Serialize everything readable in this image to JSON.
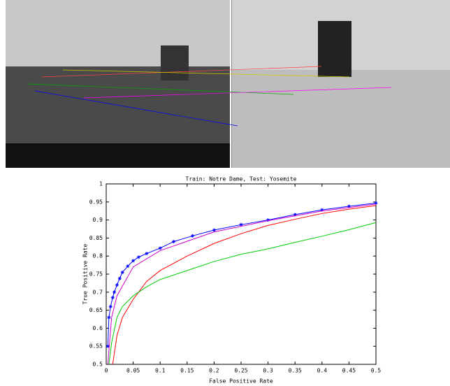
{
  "chart_data": {
    "type": "line",
    "title": "Train: Notre Dame, Test: Yosemite",
    "x_label": "False Positive Rate",
    "y_label": "True Positive Rate",
    "xlim": [
      0,
      0.5
    ],
    "ylim": [
      0.5,
      1
    ],
    "xticks": [
      0,
      0.05,
      0.1,
      0.15,
      0.2,
      0.25,
      0.3,
      0.35,
      0.4,
      0.45,
      0.5
    ],
    "yticks": [
      0.5,
      0.55,
      0.6,
      0.65,
      0.7,
      0.75,
      0.8,
      0.85,
      0.9,
      0.95,
      1
    ],
    "series": [
      {
        "color": "#0000ff",
        "marker": "star",
        "x": [
          0.003,
          0.005,
          0.008,
          0.012,
          0.015,
          0.02,
          0.025,
          0.03,
          0.04,
          0.05,
          0.06,
          0.075,
          0.1,
          0.125,
          0.16,
          0.2,
          0.25,
          0.3,
          0.35,
          0.4,
          0.45,
          0.5
        ],
        "values": [
          0.55,
          0.63,
          0.66,
          0.685,
          0.7,
          0.72,
          0.738,
          0.755,
          0.772,
          0.787,
          0.797,
          0.807,
          0.822,
          0.84,
          0.856,
          0.872,
          0.887,
          0.9,
          0.915,
          0.928,
          0.938,
          0.947
        ]
      },
      {
        "color": "#cc00cc",
        "x": [
          0.003,
          0.01,
          0.02,
          0.05,
          0.1,
          0.2,
          0.3,
          0.4,
          0.5
        ],
        "values": [
          0.5,
          0.63,
          0.69,
          0.77,
          0.815,
          0.867,
          0.898,
          0.925,
          0.944
        ]
      },
      {
        "color": "#ff0000",
        "x": [
          0.012,
          0.02,
          0.03,
          0.05,
          0.075,
          0.1,
          0.15,
          0.2,
          0.25,
          0.3,
          0.35,
          0.4,
          0.45,
          0.5
        ],
        "values": [
          0.5,
          0.58,
          0.63,
          0.68,
          0.73,
          0.76,
          0.8,
          0.835,
          0.862,
          0.885,
          0.902,
          0.918,
          0.93,
          0.94
        ]
      },
      {
        "color": "#00cc00",
        "x": [
          0.005,
          0.01,
          0.02,
          0.03,
          0.05,
          0.075,
          0.1,
          0.15,
          0.2,
          0.25,
          0.3,
          0.35,
          0.4,
          0.45,
          0.5
        ],
        "values": [
          0.5,
          0.56,
          0.63,
          0.66,
          0.69,
          0.715,
          0.735,
          0.76,
          0.785,
          0.805,
          0.82,
          0.838,
          0.855,
          0.873,
          0.893
        ]
      }
    ]
  }
}
